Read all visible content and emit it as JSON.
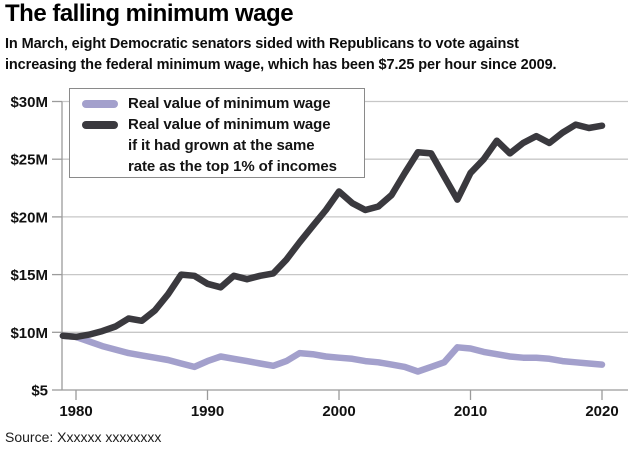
{
  "header": {
    "title": "The falling minimum wage",
    "subtitle_lines": [
      "In March, eight Democratic senators sided with Republicans to vote against",
      "increasing the federal minimum wage, which has been $7.25 per hour since 2009."
    ]
  },
  "legend": {
    "items": [
      {
        "lines": [
          "Real value of minimum wage"
        ]
      },
      {
        "lines": [
          "Real value of minimum wage",
          "if it had grown at the same",
          "rate as the top 1% of incomes"
        ]
      }
    ]
  },
  "source": "Source: Xxxxxx xxxxxxxx",
  "colors": {
    "minimum_wage_line": "#a3a0cc",
    "top1_line": "#3a393e",
    "gridline": "#c7c7c7",
    "axis": "#9b9b9b",
    "label_text": "#111111"
  },
  "chart_data": {
    "type": "line",
    "title": "The falling minimum wage",
    "xlabel": "",
    "ylabel": "",
    "grid": "horizontal",
    "legend_position": "top-left",
    "x": [
      1979,
      1980,
      1981,
      1982,
      1983,
      1984,
      1985,
      1986,
      1987,
      1988,
      1989,
      1990,
      1991,
      1992,
      1993,
      1994,
      1995,
      1996,
      1997,
      1998,
      1999,
      2000,
      2001,
      2002,
      2003,
      2004,
      2005,
      2006,
      2007,
      2008,
      2009,
      2010,
      2011,
      2012,
      2013,
      2014,
      2015,
      2016,
      2017,
      2018,
      2019,
      2020
    ],
    "series": [
      {
        "id": "real-minimum-wage",
        "name": "Real value of minimum wage",
        "color": "#a3a0cc",
        "values": [
          9.7,
          9.6,
          9.2,
          8.8,
          8.5,
          8.2,
          8.0,
          7.8,
          7.6,
          7.3,
          7.0,
          7.5,
          7.9,
          7.7,
          7.5,
          7.3,
          7.1,
          7.5,
          8.2,
          8.1,
          7.9,
          7.8,
          7.7,
          7.5,
          7.4,
          7.2,
          7.0,
          6.6,
          7.0,
          7.4,
          8.7,
          8.6,
          8.3,
          8.1,
          7.9,
          7.8,
          7.8,
          7.7,
          7.5,
          7.4,
          7.3,
          7.2
        ]
      },
      {
        "id": "if-grown-top-1pct",
        "name": "Real value of minimum wage if it had grown at the same rate as the top 1% of incomes",
        "color": "#3a393e",
        "values": [
          9.7,
          9.6,
          9.8,
          10.1,
          10.5,
          11.2,
          11.0,
          11.9,
          13.3,
          15.0,
          14.9,
          14.2,
          13.9,
          14.9,
          14.6,
          14.9,
          15.1,
          16.3,
          17.8,
          19.2,
          20.6,
          22.2,
          21.2,
          20.6,
          20.9,
          21.9,
          23.8,
          25.6,
          25.5,
          23.5,
          21.5,
          23.8,
          25.0,
          26.6,
          25.5,
          26.4,
          27.0,
          26.4,
          27.3,
          28.0,
          27.7,
          27.9
        ]
      }
    ],
    "x_axis": {
      "range": [
        1979,
        2022
      ],
      "ticks": [
        {
          "value": 1980,
          "label": "1980"
        },
        {
          "value": 1990,
          "label": "1990"
        },
        {
          "value": 2000,
          "label": "2000"
        },
        {
          "value": 2010,
          "label": "2010"
        },
        {
          "value": 2020,
          "label": "2020"
        }
      ]
    },
    "y_axis": {
      "range": [
        5,
        31
      ],
      "baseline": 5,
      "ticks": [
        {
          "value": 5,
          "label": "$5"
        },
        {
          "value": 10,
          "label": "$10M"
        },
        {
          "value": 15,
          "label": "$15M"
        },
        {
          "value": 20,
          "label": "$20M"
        },
        {
          "value": 25,
          "label": "$25M"
        },
        {
          "value": 30,
          "label": "$30M"
        }
      ]
    }
  }
}
